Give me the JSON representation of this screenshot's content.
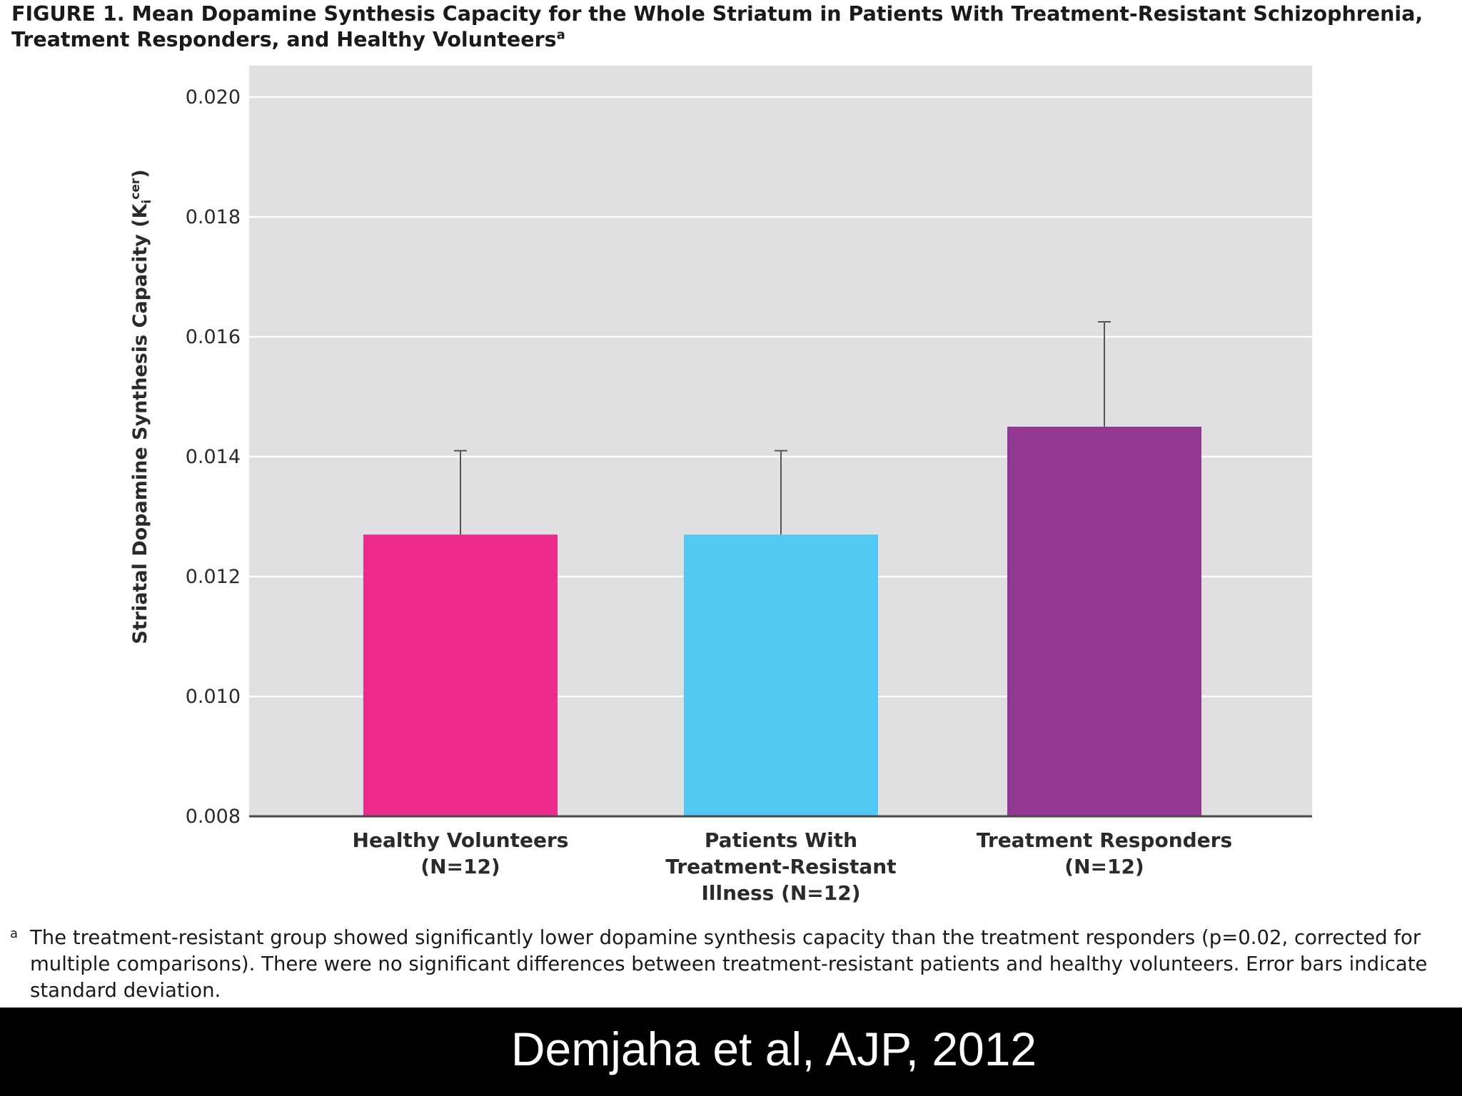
{
  "figure": {
    "title": "FIGURE 1. Mean Dopamine Synthesis Capacity for the Whole Striatum in Patients With Treatment-Resistant Schizophrenia, Treatment Responders, and Healthy Volunteers",
    "title_marker": "a",
    "footnote_marker": "a",
    "footnote": "The treatment-resistant group showed significantly lower dopamine synthesis capacity than the treatment responders (p=0.02, corrected for multiple comparisons). There were no significant differences between treatment-resistant patients and healthy volunteers. Error bars indicate standard deviation."
  },
  "citation": "Demjaha et al, AJP, 2012",
  "chart_data": {
    "type": "bar",
    "title": "Mean Dopamine Synthesis Capacity for the Whole Striatum in Patients With Treatment-Resistant Schizophrenia, Treatment Responders, and Healthy Volunteers",
    "ylabel_main": "Striatal Dopamine Synthesis Capacity (K",
    "ylabel_sub": "i",
    "ylabel_sup": "cer",
    "ylabel_end": ")",
    "ylim": [
      0.008,
      0.02
    ],
    "yticks": [
      "0.020",
      "0.018",
      "0.016",
      "0.014",
      "0.012",
      "0.010",
      "0.008"
    ],
    "ytick_values": [
      0.02,
      0.018,
      0.016,
      0.014,
      0.012,
      0.01,
      0.008
    ],
    "grid": true,
    "categories": [
      [
        "Healthy Volunteers",
        "(N=12)"
      ],
      [
        "Patients With",
        "Treatment-Resistant",
        "Illness (N=12)"
      ],
      [
        "Treatment Responders",
        "(N=12)"
      ]
    ],
    "values": [
      0.0127,
      0.0127,
      0.0145
    ],
    "error_upper": [
      0.0141,
      0.0141,
      0.01625
    ],
    "colors": [
      "#ec2b8c",
      "#51c9f2",
      "#923892"
    ],
    "background_color": "#e0e0e2"
  }
}
